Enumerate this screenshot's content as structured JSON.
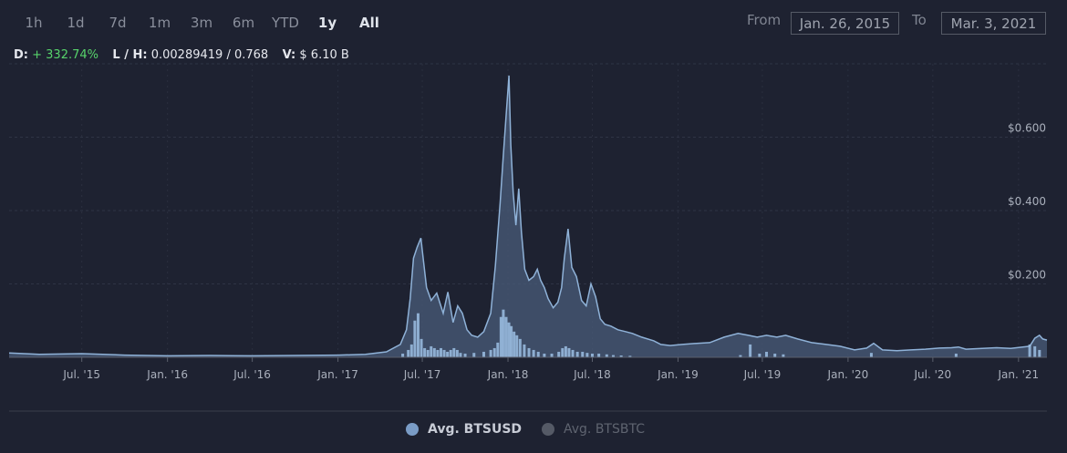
{
  "zoom": {
    "buttons": [
      "1h",
      "1d",
      "7d",
      "1m",
      "3m",
      "6m",
      "YTD",
      "1y",
      "All"
    ],
    "active": "1y"
  },
  "range": {
    "from_label": "From",
    "from_value": "Jan. 26, 2015",
    "to_label": "To",
    "to_value": "Mar. 3, 2021"
  },
  "stats": {
    "d_label": "D:",
    "d_value": "+ 332.74%",
    "lh_label": "L / H:",
    "lh_value": "0.00289419 / 0.768",
    "v_label": "V:",
    "v_value": "$ 6.10 B"
  },
  "colors": {
    "background": "#1e2231",
    "line": "#8fb2d8",
    "area": "#4a5c7a",
    "volume": "#9cc0e4",
    "gain": "#57d36b"
  },
  "chart_data": {
    "type": "area",
    "y_ticks": [
      "$0.200",
      "$0.400",
      "$0.600"
    ],
    "y_tick_values": [
      0.2,
      0.4,
      0.6
    ],
    "ylim": [
      0,
      0.8
    ],
    "x_ticks": [
      "Jul. '15",
      "Jan. '16",
      "Jul. '16",
      "Jan. '17",
      "Jul. '17",
      "Jan. '18",
      "Jul. '18",
      "Jan. '19",
      "Jul. '19",
      "Jan. '20",
      "Jul. '20",
      "Jan. '21"
    ],
    "x_tick_dates": [
      "2015-07-01",
      "2016-01-01",
      "2016-07-01",
      "2017-01-01",
      "2017-07-01",
      "2018-01-01",
      "2018-07-01",
      "2019-01-01",
      "2019-07-01",
      "2020-01-01",
      "2020-07-01",
      "2021-01-01"
    ],
    "xlim": [
      "2015-01-26",
      "2021-03-03"
    ],
    "grid": true,
    "legend_position": "bottom-center",
    "series": [
      {
        "name": "Avg. BTSUSD",
        "visible": true,
        "x": [
          "2015-01-26",
          "2015-04-01",
          "2015-07-01",
          "2015-10-01",
          "2016-01-01",
          "2016-04-01",
          "2016-07-01",
          "2016-10-01",
          "2017-01-01",
          "2017-03-01",
          "2017-04-15",
          "2017-05-15",
          "2017-05-28",
          "2017-06-05",
          "2017-06-12",
          "2017-06-20",
          "2017-06-28",
          "2017-07-10",
          "2017-07-20",
          "2017-08-01",
          "2017-08-15",
          "2017-08-25",
          "2017-09-05",
          "2017-09-15",
          "2017-09-25",
          "2017-10-05",
          "2017-10-15",
          "2017-10-28",
          "2017-11-10",
          "2017-11-25",
          "2017-12-05",
          "2017-12-15",
          "2017-12-22",
          "2017-12-28",
          "2018-01-03",
          "2018-01-07",
          "2018-01-12",
          "2018-01-18",
          "2018-01-24",
          "2018-01-30",
          "2018-02-06",
          "2018-02-15",
          "2018-02-25",
          "2018-03-05",
          "2018-03-12",
          "2018-03-20",
          "2018-03-28",
          "2018-04-08",
          "2018-04-18",
          "2018-04-26",
          "2018-05-02",
          "2018-05-10",
          "2018-05-18",
          "2018-05-28",
          "2018-06-08",
          "2018-06-18",
          "2018-06-28",
          "2018-07-08",
          "2018-07-18",
          "2018-07-28",
          "2018-08-10",
          "2018-08-25",
          "2018-09-10",
          "2018-09-25",
          "2018-10-15",
          "2018-11-10",
          "2018-11-25",
          "2018-12-15",
          "2019-01-10",
          "2019-02-10",
          "2019-03-10",
          "2019-04-10",
          "2019-05-10",
          "2019-06-01",
          "2019-06-20",
          "2019-07-10",
          "2019-08-01",
          "2019-08-20",
          "2019-09-15",
          "2019-10-15",
          "2019-11-15",
          "2019-12-15",
          "2020-01-15",
          "2020-02-10",
          "2020-02-25",
          "2020-03-15",
          "2020-04-15",
          "2020-05-15",
          "2020-06-15",
          "2020-07-15",
          "2020-08-10",
          "2020-08-25",
          "2020-09-10",
          "2020-10-15",
          "2020-11-15",
          "2020-12-15",
          "2021-01-10",
          "2021-01-25",
          "2021-02-05",
          "2021-02-15",
          "2021-02-22",
          "2021-03-03"
        ],
        "y": [
          0.012,
          0.008,
          0.01,
          0.006,
          0.004,
          0.005,
          0.004,
          0.005,
          0.006,
          0.008,
          0.015,
          0.035,
          0.075,
          0.16,
          0.27,
          0.3,
          0.325,
          0.19,
          0.155,
          0.175,
          0.12,
          0.178,
          0.095,
          0.14,
          0.12,
          0.075,
          0.06,
          0.055,
          0.07,
          0.12,
          0.25,
          0.42,
          0.55,
          0.66,
          0.768,
          0.58,
          0.45,
          0.36,
          0.46,
          0.34,
          0.24,
          0.21,
          0.22,
          0.24,
          0.21,
          0.19,
          0.16,
          0.135,
          0.15,
          0.19,
          0.27,
          0.35,
          0.245,
          0.22,
          0.155,
          0.14,
          0.2,
          0.165,
          0.105,
          0.09,
          0.085,
          0.075,
          0.07,
          0.065,
          0.055,
          0.045,
          0.035,
          0.032,
          0.035,
          0.038,
          0.04,
          0.055,
          0.065,
          0.06,
          0.055,
          0.06,
          0.055,
          0.06,
          0.05,
          0.04,
          0.035,
          0.03,
          0.02,
          0.025,
          0.038,
          0.02,
          0.018,
          0.02,
          0.022,
          0.025,
          0.026,
          0.028,
          0.022,
          0.024,
          0.026,
          0.024,
          0.028,
          0.03,
          0.052,
          0.06,
          0.05,
          0.047
        ]
      },
      {
        "name": "Avg. BTSBTC",
        "visible": false
      }
    ],
    "volume_bars": {
      "x": [
        "2017-05-20",
        "2017-06-01",
        "2017-06-08",
        "2017-06-15",
        "2017-06-22",
        "2017-06-29",
        "2017-07-06",
        "2017-07-13",
        "2017-07-20",
        "2017-07-27",
        "2017-08-03",
        "2017-08-10",
        "2017-08-17",
        "2017-08-24",
        "2017-08-31",
        "2017-09-07",
        "2017-09-14",
        "2017-09-21",
        "2017-10-01",
        "2017-10-20",
        "2017-11-10",
        "2017-11-25",
        "2017-12-03",
        "2017-12-10",
        "2017-12-17",
        "2017-12-22",
        "2017-12-28",
        "2018-01-03",
        "2018-01-08",
        "2018-01-14",
        "2018-01-20",
        "2018-01-27",
        "2018-02-05",
        "2018-02-15",
        "2018-02-25",
        "2018-03-07",
        "2018-03-20",
        "2018-04-05",
        "2018-04-20",
        "2018-04-28",
        "2018-05-05",
        "2018-05-12",
        "2018-05-20",
        "2018-05-30",
        "2018-06-10",
        "2018-06-20",
        "2018-07-01",
        "2018-07-15",
        "2018-08-01",
        "2018-08-15",
        "2018-09-01",
        "2018-09-20",
        "2019-05-15",
        "2019-06-05",
        "2019-06-25",
        "2019-07-10",
        "2019-07-28",
        "2019-08-15",
        "2020-02-20",
        "2020-08-20",
        "2021-01-25",
        "2021-02-05",
        "2021-02-15"
      ],
      "y": [
        0.01,
        0.02,
        0.035,
        0.1,
        0.12,
        0.05,
        0.025,
        0.02,
        0.03,
        0.025,
        0.02,
        0.025,
        0.02,
        0.015,
        0.02,
        0.025,
        0.02,
        0.012,
        0.01,
        0.012,
        0.015,
        0.02,
        0.025,
        0.04,
        0.11,
        0.13,
        0.11,
        0.095,
        0.085,
        0.07,
        0.06,
        0.05,
        0.035,
        0.025,
        0.02,
        0.015,
        0.01,
        0.01,
        0.015,
        0.025,
        0.03,
        0.025,
        0.02,
        0.015,
        0.015,
        0.012,
        0.01,
        0.01,
        0.008,
        0.006,
        0.005,
        0.004,
        0.006,
        0.035,
        0.01,
        0.015,
        0.01,
        0.008,
        0.012,
        0.01,
        0.035,
        0.03,
        0.02
      ]
    }
  },
  "legend": [
    {
      "label": "Avg. BTSUSD",
      "active": true,
      "color": "#7a9cc6"
    },
    {
      "label": "Avg. BTSBTC",
      "active": false,
      "color": "#555a66"
    }
  ]
}
